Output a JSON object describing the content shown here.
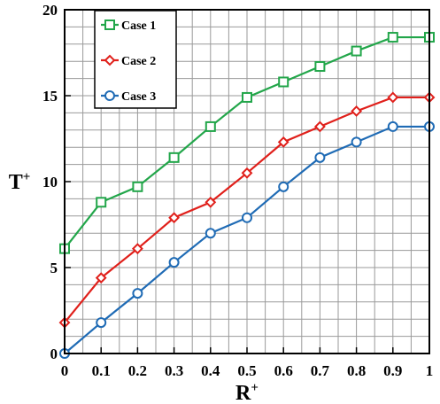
{
  "chart_data": {
    "type": "line",
    "xlabel": "R",
    "xlabel_sup": "+",
    "ylabel": "T",
    "ylabel_sup": "+",
    "xlim": [
      0,
      1
    ],
    "ylim": [
      0,
      20
    ],
    "grid": true,
    "legend_position": "top-left",
    "x": [
      0,
      0.1,
      0.2,
      0.3,
      0.4,
      0.5,
      0.6,
      0.7,
      0.8,
      0.9,
      1
    ],
    "x_tick_labels": [
      "0",
      "0.1",
      "0.2",
      "0.3",
      "0.4",
      "0.5",
      "0.6",
      "0.7",
      "0.8",
      "0.9",
      "1"
    ],
    "y_tick_values": [
      0,
      5,
      10,
      15,
      20
    ],
    "y_tick_labels": [
      "0",
      "5",
      "10",
      "15",
      "20"
    ],
    "series": [
      {
        "name": "Case 1",
        "color": "#22a64a",
        "marker": "square",
        "values": [
          6.1,
          8.8,
          9.7,
          11.4,
          13.2,
          14.9,
          15.8,
          16.7,
          17.6,
          18.4,
          18.4
        ]
      },
      {
        "name": "Case 2",
        "color": "#e0201b",
        "marker": "diamond",
        "values": [
          1.8,
          4.4,
          6.1,
          7.9,
          8.8,
          10.5,
          12.3,
          13.2,
          14.1,
          14.9,
          14.9
        ]
      },
      {
        "name": "Case 3",
        "color": "#1f6bb5",
        "marker": "circle",
        "values": [
          0,
          1.8,
          3.5,
          5.3,
          7.0,
          7.9,
          9.7,
          11.4,
          12.3,
          13.2,
          13.2
        ]
      }
    ]
  }
}
